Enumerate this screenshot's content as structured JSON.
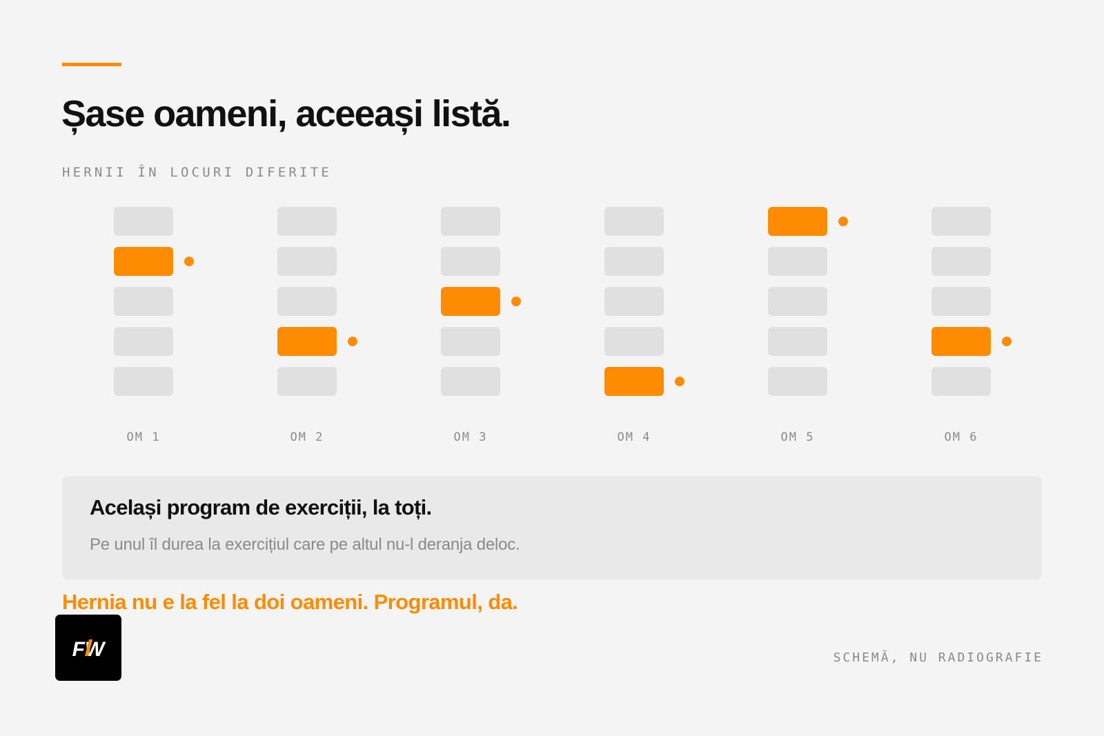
{
  "header": {
    "title": "Șase oameni, aceeași listă.",
    "subtitle": "HERNII ÎN LOCURI DIFERITE"
  },
  "diagram": {
    "segments_per_person": 5,
    "people": [
      {
        "label": "OM 1",
        "hernia_segment": 2
      },
      {
        "label": "OM 2",
        "hernia_segment": 4
      },
      {
        "label": "OM 3",
        "hernia_segment": 3
      },
      {
        "label": "OM 4",
        "hernia_segment": 5
      },
      {
        "label": "OM 5",
        "hernia_segment": 1
      },
      {
        "label": "OM 6",
        "hernia_segment": 4
      }
    ]
  },
  "card": {
    "title": "Același program de exerciții, la toți.",
    "text": "Pe unul îl durea la exercițiul care pe altul nu-l deranja deloc."
  },
  "conclusion": "Hernia nu e la fel la doi oameni. Programul, da.",
  "logo": {
    "text": "FW"
  },
  "footnote": "SCHEMĂ, NU RADIOGRAFIE",
  "colors": {
    "accent": "#ff8c00",
    "segment": "#e0e0e0",
    "background": "#f4f4f4",
    "card": "#e9e9e9",
    "text": "#111111",
    "muted": "#8a8a8a"
  }
}
